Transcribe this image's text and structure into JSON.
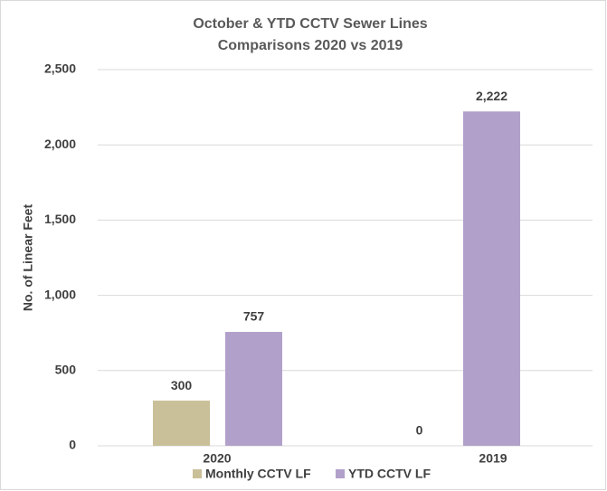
{
  "chart_data": {
    "type": "bar",
    "title": [
      "October & YTD CCTV Sewer Lines",
      "Comparisons 2020 vs 2019"
    ],
    "y_label": "No. of Linear Feet",
    "categories": [
      "2020",
      "2019"
    ],
    "series": [
      {
        "name": "Monthly CCTV LF",
        "color": "#c9bf98",
        "values": [
          300,
          0
        ],
        "value_labels": [
          "300",
          "0"
        ]
      },
      {
        "name": "YTD CCTV LF",
        "color": "#b1a0ca",
        "values": [
          757,
          2222
        ],
        "value_labels": [
          "757",
          "2,222"
        ]
      }
    ],
    "ylim": [
      0,
      2500
    ],
    "yticks": [
      0,
      500,
      {
        "value": 1000,
        "label": "1,000"
      },
      {
        "value": 1500,
        "label": "1,500"
      },
      {
        "value": 2000,
        "label": "2,000"
      },
      {
        "value": 2500,
        "label": "2,500"
      }
    ],
    "grid": true,
    "legend": "bottom"
  }
}
